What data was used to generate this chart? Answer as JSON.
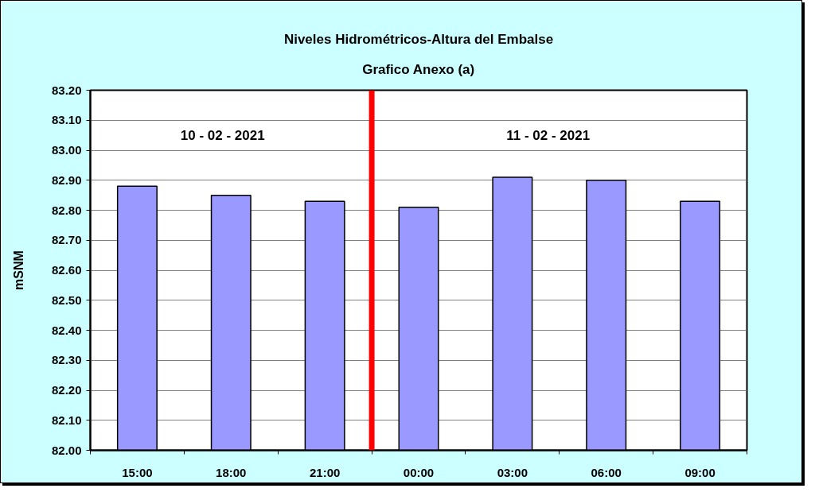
{
  "chart_data": {
    "type": "bar",
    "title": "Niveles Hidrométricos-Altura del Embalse",
    "subtitle": "Grafico Anexo (a)",
    "ylabel": "mSNM",
    "x": [
      "2021-02-10T15:00",
      "2021-02-10T18:00",
      "2021-02-10T21:00",
      "2021-02-11T00:00",
      "2021-02-11T03:00",
      "2021-02-11T06:00",
      "2021-02-11T09:00"
    ],
    "values": [
      82.88,
      82.85,
      82.83,
      82.81,
      82.91,
      82.9,
      82.83
    ],
    "color": "#9999ff",
    "xlim": [
      "2021-02-10T13:30",
      "2021-02-11T10:30"
    ],
    "xticks": [
      {
        "value": "2021-02-10T13:30",
        "label": null
      },
      {
        "value": "2021-02-10T15:00",
        "label": "15:00"
      },
      {
        "value": "2021-02-10T16:30",
        "label": null
      },
      {
        "value": "2021-02-10T18:00",
        "label": "18:00"
      },
      {
        "value": "2021-02-10T19:30",
        "label": null
      },
      {
        "value": "2021-02-10T21:00",
        "label": "21:00"
      },
      {
        "value": "2021-02-10T22:30",
        "label": null
      },
      {
        "value": "2021-02-11T00:00",
        "label": "00:00"
      },
      {
        "value": "2021-02-11T01:30",
        "label": null
      },
      {
        "value": "2021-02-11T03:00",
        "label": "03:00"
      },
      {
        "value": "2021-02-11T04:30",
        "label": null
      },
      {
        "value": "2021-02-11T06:00",
        "label": "06:00"
      },
      {
        "value": "2021-02-11T07:30",
        "label": null
      },
      {
        "value": "2021-02-11T09:00",
        "label": "09:00"
      },
      {
        "value": "2021-02-11T10:30",
        "label": null
      }
    ],
    "ylim": [
      82.0,
      83.2
    ],
    "yticks": [
      {
        "value": 82.0,
        "label": "82.00"
      },
      {
        "value": 82.1,
        "label": "82.10"
      },
      {
        "value": 82.2,
        "label": "82.20"
      },
      {
        "value": 82.3,
        "label": "82.30"
      },
      {
        "value": 82.4,
        "label": "82.40"
      },
      {
        "value": 82.5,
        "label": "82.50"
      },
      {
        "value": 82.6,
        "label": "82.60"
      },
      {
        "value": 82.7,
        "label": "82.70"
      },
      {
        "value": 82.8,
        "label": "82.80"
      },
      {
        "value": 82.9,
        "label": "82.90"
      },
      {
        "value": 83.0,
        "label": "83.00"
      },
      {
        "value": 83.1,
        "label": "83.10"
      },
      {
        "value": 83.2,
        "label": "83.20"
      }
    ],
    "grid": "y",
    "ref_lines": [
      {
        "axis": "x",
        "value": "2021-02-10T22:30",
        "color": "#ff0000"
      }
    ],
    "annotations": [
      "10 - 02 - 2021",
      "11 - 02 - 2021"
    ]
  }
}
